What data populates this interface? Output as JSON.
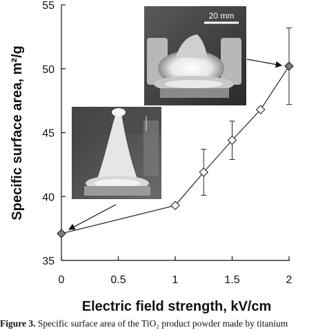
{
  "chart_data": {
    "type": "scatter",
    "xlabel": "Electric field strength, kV/cm",
    "ylabel": "Specific surface area, m²/g",
    "xlim": [
      0,
      2
    ],
    "ylim": [
      35,
      55
    ],
    "xticks": [
      "0",
      "0.5",
      "1",
      "1.5",
      "2"
    ],
    "yticks": [
      "35",
      "40",
      "45",
      "50",
      "55"
    ],
    "grid": false,
    "series": [
      {
        "x": [
          0,
          1,
          1.25,
          1.5,
          1.75,
          2
        ],
        "y": [
          37.1,
          39.3,
          41.9,
          44.4,
          46.8,
          50.2
        ],
        "err": [
          0,
          0,
          1.8,
          1.5,
          0,
          3.0
        ],
        "filled": [
          true,
          false,
          false,
          false,
          false,
          true
        ]
      }
    ],
    "inset_photo_scale": "20 mm"
  },
  "caption": {
    "label": "Figure 3.",
    "text": " Specific surface area of the TiO₂ product powder made by titanium"
  },
  "colors": {
    "line": "#333333",
    "filled_marker": "#7a7a7a",
    "photo_dark": "#3a3a3a"
  }
}
